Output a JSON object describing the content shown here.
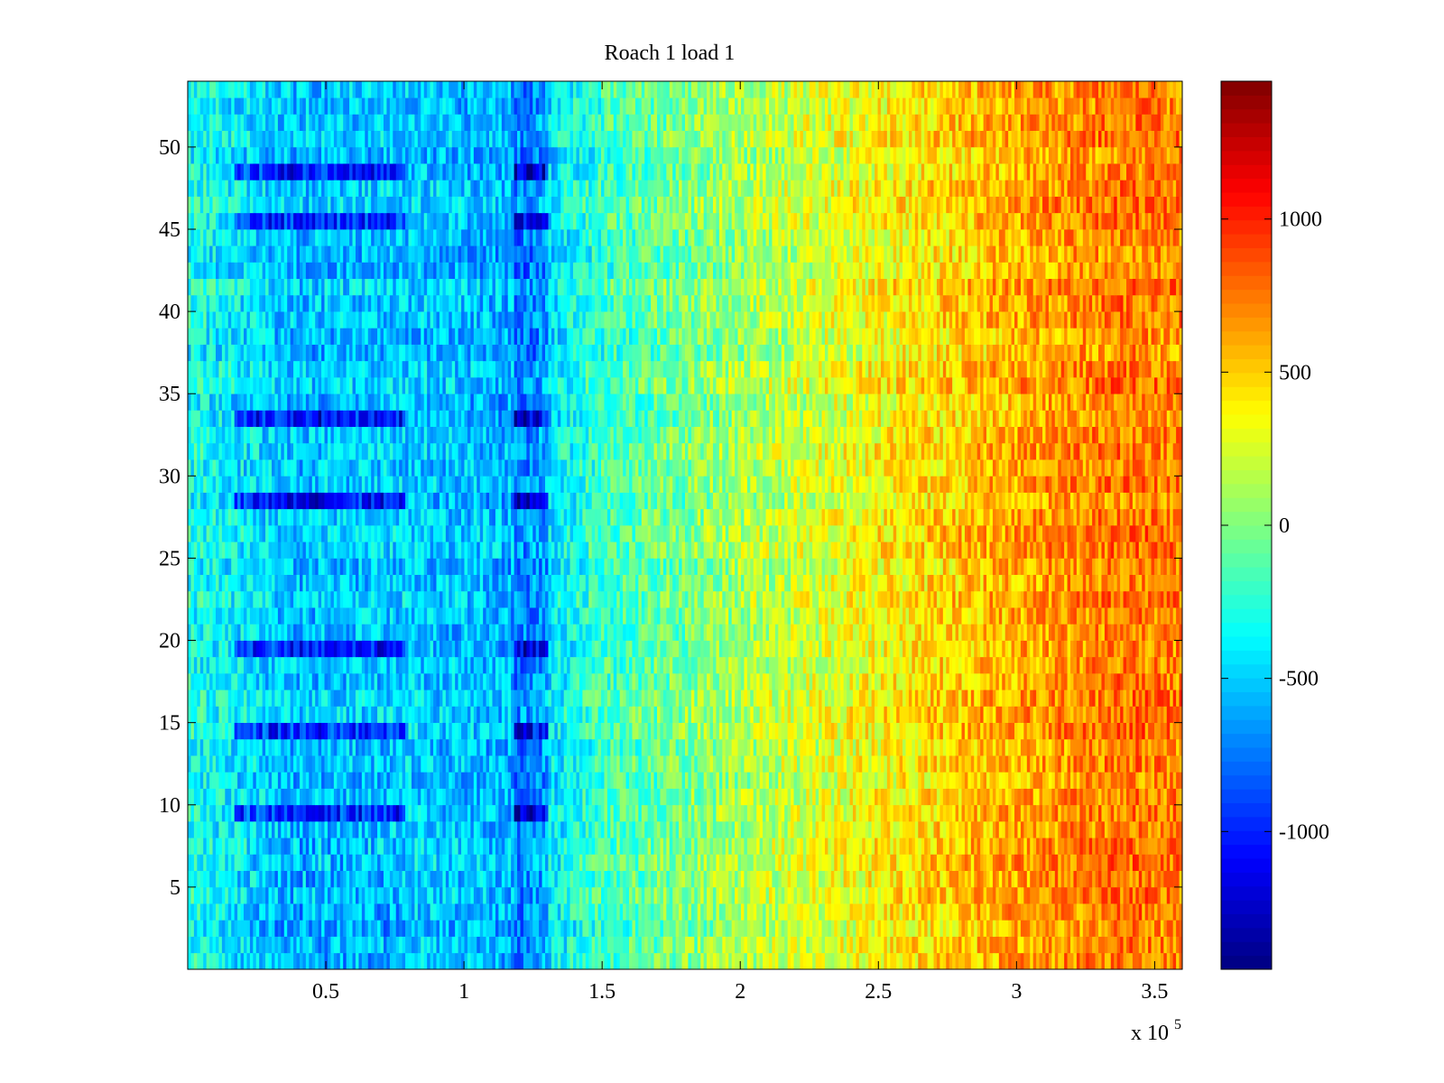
{
  "chart_data": {
    "type": "heatmap",
    "title": "Roach 1 load 1",
    "xlabel": "",
    "ylabel": "",
    "x_range": [
      0,
      360000
    ],
    "y_range": [
      0,
      54
    ],
    "x_ticks": [
      50000,
      100000,
      150000,
      200000,
      250000,
      300000,
      350000
    ],
    "x_tick_labels": [
      "0.5",
      "1",
      "1.5",
      "2",
      "2.5",
      "3",
      "3.5"
    ],
    "x_exponent_label": {
      "base": "x 10",
      "exponent": "5"
    },
    "y_ticks": [
      5,
      10,
      15,
      20,
      25,
      30,
      35,
      40,
      45,
      50
    ],
    "y_tick_labels": [
      "5",
      "10",
      "15",
      "20",
      "25",
      "30",
      "35",
      "40",
      "45",
      "50"
    ],
    "rows": 54,
    "colormap": "jet",
    "value_range": [
      -1450,
      1450
    ],
    "colorbar": {
      "ticks": [
        1000,
        500,
        0,
        -500,
        -1000
      ],
      "tick_labels": [
        "1000",
        "500",
        "0",
        "-500",
        "-1000"
      ]
    },
    "trend": {
      "description_points_x": [
        0,
        40000,
        80000,
        120000,
        150000,
        200000,
        250000,
        300000,
        340000,
        360000
      ],
      "description_points_value": [
        -300,
        -550,
        -500,
        -600,
        -200,
        100,
        350,
        600,
        750,
        700
      ]
    },
    "dark_rows": [
      10,
      15,
      20,
      29,
      34,
      46,
      49
    ],
    "grid": false,
    "legend": "none"
  }
}
